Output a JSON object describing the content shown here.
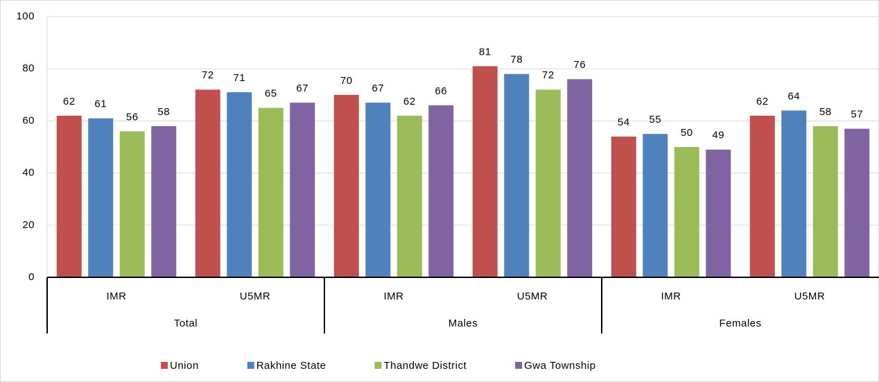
{
  "chart_data": {
    "type": "bar",
    "categories": [
      "IMR",
      "U5MR",
      "IMR",
      "U5MR",
      "IMR",
      "U5MR"
    ],
    "category_groups": [
      "Total",
      "Males",
      "Females"
    ],
    "series": [
      {
        "name": "Union",
        "color": "#c0504d",
        "values": [
          62,
          72,
          70,
          81,
          54,
          62
        ]
      },
      {
        "name": "Rakhine State",
        "color": "#4f81bd",
        "values": [
          61,
          71,
          67,
          78,
          55,
          64
        ]
      },
      {
        "name": "Thandwe District",
        "color": "#9bbb59",
        "values": [
          56,
          65,
          62,
          72,
          50,
          58
        ]
      },
      {
        "name": "Gwa Township",
        "color": "#8064a2",
        "values": [
          58,
          67,
          66,
          76,
          49,
          57
        ]
      }
    ],
    "ylim": [
      0,
      100
    ],
    "yticks": [
      0,
      20,
      40,
      60,
      80,
      100
    ],
    "grid": true,
    "legend": "bottom"
  }
}
